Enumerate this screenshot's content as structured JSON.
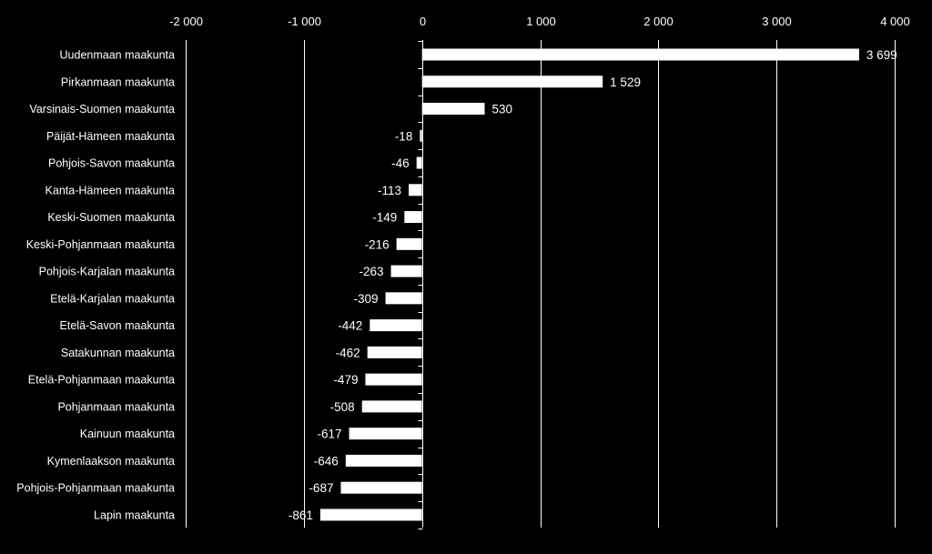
{
  "colors": {
    "background": "#000000",
    "bar": "#ffffff",
    "text": "#ffffff",
    "grid": "#ffffff"
  },
  "chart_data": {
    "type": "bar",
    "orientation": "horizontal",
    "title": "",
    "xlabel": "",
    "ylabel": "",
    "xlim": [
      -2000,
      4000
    ],
    "x_ticks": [
      -2000,
      -1000,
      0,
      1000,
      2000,
      3000,
      4000
    ],
    "x_tick_labels": [
      "-2 000",
      "-1 000",
      "0",
      "1 000",
      "2 000",
      "3 000",
      "4 000"
    ],
    "x_axis_position": "top",
    "grid": true,
    "legend": "none",
    "categories": [
      "Uudenmaan maakunta",
      "Pirkanmaan maakunta",
      "Varsinais-Suomen maakunta",
      "Päijät-Hämeen maakunta",
      "Pohjois-Savon maakunta",
      "Kanta-Hämeen maakunta",
      "Keski-Suomen maakunta",
      "Keski-Pohjanmaan maakunta",
      "Pohjois-Karjalan maakunta",
      "Etelä-Karjalan maakunta",
      "Etelä-Savon maakunta",
      "Satakunnan maakunta",
      "Etelä-Pohjanmaan maakunta",
      "Pohjanmaan maakunta",
      "Kainuun maakunta",
      "Kymenlaakson maakunta",
      "Pohjois-Pohjanmaan maakunta",
      "Lapin maakunta"
    ],
    "values": [
      3699,
      1529,
      530,
      -18,
      -46,
      -113,
      -149,
      -216,
      -263,
      -309,
      -442,
      -462,
      -479,
      -508,
      -617,
      -646,
      -687,
      -861
    ],
    "data_labels": [
      "3 699",
      "1 529",
      "530",
      "-18",
      "-46",
      "-113",
      "-149",
      "-216",
      "-263",
      "-309",
      "-442",
      "-462",
      "-479",
      "-508",
      "-617",
      "-646",
      "-687",
      "-861"
    ]
  }
}
